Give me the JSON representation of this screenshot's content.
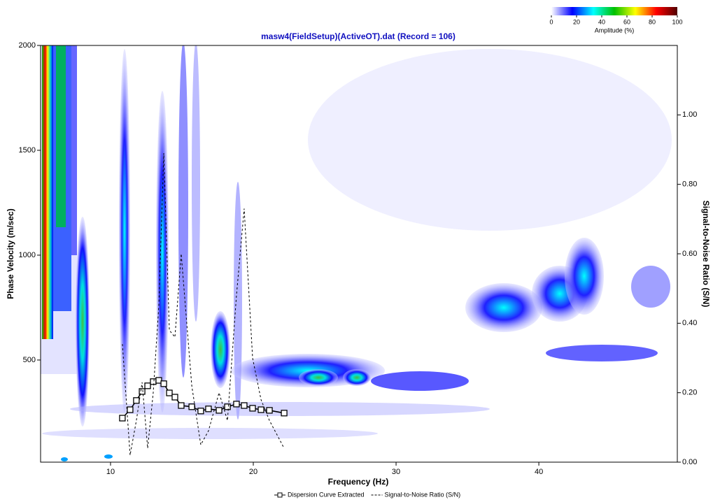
{
  "chart_data": {
    "type": "line",
    "title": "masw4(FieldSetup)(ActiveOT).dat (Record = 106)",
    "x_label": "Frequency (Hz)",
    "y_label": "Phase Velocity (m/sec)",
    "y2_label": "Signal-to-Noise Ratio (S/N)",
    "x": [
      10.83,
      11.37,
      11.81,
      12.21,
      12.6,
      12.99,
      13.38,
      13.73,
      14.12,
      14.51,
      14.95,
      15.69,
      16.32,
      16.86,
      17.6,
      18.19,
      18.82,
      19.36,
      19.95,
      20.54,
      21.13,
      22.16
    ],
    "series": [
      {
        "name": "Dispersion Curve Extracted",
        "color": "#000000",
        "marker": "square",
        "values": [
          223,
          263,
          307,
          350,
          377,
          397,
          403,
          387,
          343,
          323,
          283,
          277,
          257,
          267,
          260,
          277,
          290,
          283,
          270,
          263,
          260,
          247
        ]
      },
      {
        "name": "Signal-to-Noise Ratio (S/N)",
        "color": "#000000",
        "dashed": true,
        "axis": "y2",
        "values": [
          0.34,
          0.02,
          0.12,
          0.23,
          0.04,
          0.2,
          0.45,
          0.89,
          0.38,
          0.36,
          0.6,
          0.22,
          0.05,
          0.09,
          0.2,
          0.12,
          0.48,
          0.73,
          0.3,
          0.18,
          0.12,
          0.04
        ]
      }
    ],
    "xlim": [
      5.1,
      49.7
    ],
    "xticks": [
      10,
      20,
      30,
      40
    ],
    "ylim": [
      13,
      2000
    ],
    "yticks": [
      500,
      1000,
      1500,
      2000
    ],
    "y2lim": [
      0,
      1.2
    ],
    "y2ticks": [
      {
        "value": 0,
        "label": "0.00"
      },
      {
        "value": 0.2,
        "label": "0.20"
      },
      {
        "value": 0.4,
        "label": "0.40"
      },
      {
        "value": 0.6,
        "label": "0.60"
      },
      {
        "value": 0.8,
        "label": "0.80"
      },
      {
        "value": 1,
        "label": "1.00"
      }
    ],
    "colorbar": {
      "label": "Amplitude (%)",
      "lim": [
        0,
        100
      ],
      "ticks": [
        0,
        20,
        40,
        60,
        80,
        100
      ],
      "colors": [
        "#ffffff",
        "#0000ff",
        "#00ffff",
        "#00c000",
        "#ffff00",
        "#ff0000",
        "#500000"
      ]
    }
  }
}
